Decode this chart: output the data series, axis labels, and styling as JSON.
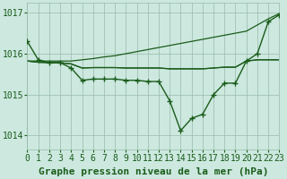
{
  "title": "Graphe pression niveau de la mer (hPa)",
  "background_color": "#cce8df",
  "plot_bg_color": "#cce8df",
  "grid_color": "#99bbaa",
  "line_color": "#1a5c1a",
  "xlim": [
    0,
    23
  ],
  "ylim": [
    1013.65,
    1017.25
  ],
  "yticks": [
    1014,
    1015,
    1016,
    1017
  ],
  "xticks": [
    0,
    1,
    2,
    3,
    4,
    5,
    6,
    7,
    8,
    9,
    10,
    11,
    12,
    13,
    14,
    15,
    16,
    17,
    18,
    19,
    20,
    21,
    22,
    23
  ],
  "series_main": [
    1016.3,
    1015.85,
    1015.78,
    1015.78,
    1015.65,
    1015.35,
    1015.38,
    1015.38,
    1015.38,
    1015.35,
    1015.35,
    1015.32,
    1015.32,
    1014.85,
    1014.12,
    1014.42,
    1014.52,
    1015.0,
    1015.28,
    1015.28,
    1015.82,
    1016.0,
    1016.78,
    1016.95
  ],
  "series_diag": [
    1015.82,
    1015.82,
    1015.82,
    1015.82,
    1015.82,
    1015.85,
    1015.88,
    1015.92,
    1015.95,
    1016.0,
    1016.05,
    1016.1,
    1016.15,
    1016.2,
    1016.25,
    1016.3,
    1016.35,
    1016.4,
    1016.45,
    1016.5,
    1016.55,
    1016.7,
    1016.85,
    1016.98
  ],
  "series_flat1": [
    1015.82,
    1015.79,
    1015.78,
    1015.78,
    1015.75,
    1015.65,
    1015.66,
    1015.66,
    1015.66,
    1015.65,
    1015.65,
    1015.65,
    1015.65,
    1015.63,
    1015.63,
    1015.63,
    1015.63,
    1015.65,
    1015.67,
    1015.67,
    1015.82,
    1015.85,
    1015.85,
    1015.85
  ],
  "series_flat2": [
    1015.82,
    1015.79,
    1015.78,
    1015.78,
    1015.75,
    1015.65,
    1015.66,
    1015.66,
    1015.66,
    1015.65,
    1015.65,
    1015.65,
    1015.65,
    1015.63,
    1015.63,
    1015.63,
    1015.63,
    1015.65,
    1015.67,
    1015.67,
    1015.82,
    1015.85,
    1015.85,
    1015.85
  ],
  "title_fontsize": 8,
  "tick_fontsize": 7
}
